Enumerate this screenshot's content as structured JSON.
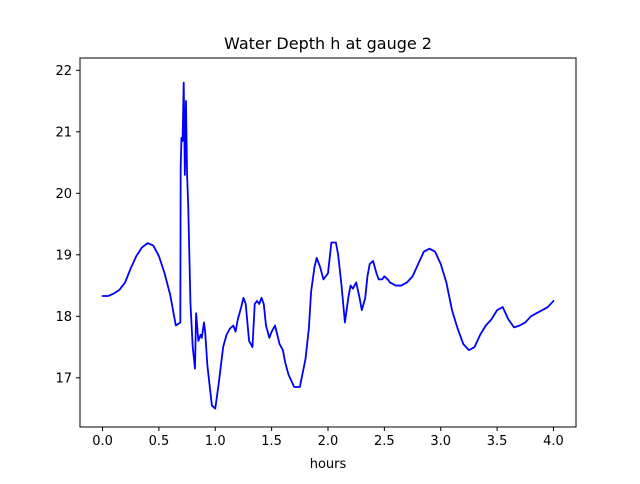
{
  "chart_data": {
    "type": "line",
    "title": "Water Depth h at gauge 2",
    "xlabel": "hours",
    "ylabel": "",
    "xlim": [
      -0.2,
      4.2
    ],
    "ylim": [
      16.2,
      22.2
    ],
    "xticks": [
      0.0,
      0.5,
      1.0,
      1.5,
      2.0,
      2.5,
      3.0,
      3.5,
      4.0
    ],
    "xtick_labels": [
      "0.0",
      "0.5",
      "1.0",
      "1.5",
      "2.0",
      "2.5",
      "3.0",
      "3.5",
      "4.0"
    ],
    "yticks": [
      17,
      18,
      19,
      20,
      21,
      22
    ],
    "ytick_labels": [
      "17",
      "18",
      "19",
      "20",
      "21",
      "22"
    ],
    "grid": false,
    "series": [
      {
        "color": "#0000ff",
        "x": [
          0.0,
          0.05,
          0.1,
          0.15,
          0.2,
          0.25,
          0.3,
          0.35,
          0.4,
          0.45,
          0.5,
          0.55,
          0.6,
          0.65,
          0.69,
          0.693,
          0.7,
          0.71,
          0.72,
          0.73,
          0.74,
          0.75,
          0.76,
          0.77,
          0.78,
          0.8,
          0.82,
          0.83,
          0.85,
          0.87,
          0.88,
          0.9,
          0.91,
          0.93,
          0.97,
          1.0,
          1.03,
          1.07,
          1.1,
          1.13,
          1.16,
          1.18,
          1.2,
          1.23,
          1.25,
          1.27,
          1.3,
          1.33,
          1.35,
          1.37,
          1.39,
          1.41,
          1.43,
          1.45,
          1.48,
          1.5,
          1.53,
          1.55,
          1.57,
          1.6,
          1.62,
          1.65,
          1.7,
          1.75,
          1.8,
          1.83,
          1.85,
          1.88,
          1.9,
          1.93,
          1.96,
          2.0,
          2.03,
          2.05,
          2.07,
          2.09,
          2.12,
          2.15,
          2.18,
          2.2,
          2.22,
          2.25,
          2.28,
          2.3,
          2.33,
          2.35,
          2.37,
          2.4,
          2.43,
          2.45,
          2.48,
          2.5,
          2.53,
          2.55,
          2.6,
          2.65,
          2.7,
          2.75,
          2.8,
          2.85,
          2.9,
          2.95,
          3.0,
          3.05,
          3.1,
          3.15,
          3.2,
          3.25,
          3.3,
          3.35,
          3.4,
          3.45,
          3.5,
          3.55,
          3.6,
          3.65,
          3.7,
          3.75,
          3.8,
          3.85,
          3.9,
          3.95,
          4.0
        ],
        "y": [
          18.33,
          18.33,
          18.37,
          18.43,
          18.55,
          18.78,
          18.98,
          19.12,
          19.19,
          19.15,
          18.98,
          18.7,
          18.35,
          17.85,
          17.9,
          20.4,
          20.9,
          20.85,
          21.8,
          20.3,
          21.5,
          20.3,
          19.8,
          19.0,
          18.2,
          17.5,
          17.15,
          18.05,
          17.6,
          17.7,
          17.65,
          17.9,
          17.75,
          17.2,
          16.55,
          16.5,
          16.9,
          17.5,
          17.7,
          17.8,
          17.85,
          17.75,
          17.95,
          18.15,
          18.3,
          18.2,
          17.6,
          17.5,
          18.2,
          18.25,
          18.2,
          18.3,
          18.2,
          17.85,
          17.65,
          17.75,
          17.85,
          17.7,
          17.55,
          17.45,
          17.25,
          17.05,
          16.85,
          16.85,
          17.3,
          17.8,
          18.4,
          18.8,
          18.95,
          18.8,
          18.6,
          18.7,
          19.2,
          19.2,
          19.2,
          19.0,
          18.5,
          17.9,
          18.3,
          18.5,
          18.45,
          18.55,
          18.3,
          18.1,
          18.3,
          18.65,
          18.85,
          18.9,
          18.7,
          18.6,
          18.6,
          18.65,
          18.6,
          18.55,
          18.5,
          18.5,
          18.55,
          18.65,
          18.85,
          19.05,
          19.1,
          19.05,
          18.85,
          18.55,
          18.1,
          17.8,
          17.55,
          17.45,
          17.5,
          17.7,
          17.85,
          17.95,
          18.1,
          18.15,
          17.95,
          17.82,
          17.85,
          17.9,
          18.0,
          18.05,
          18.1,
          18.15,
          18.25
        ]
      }
    ]
  }
}
